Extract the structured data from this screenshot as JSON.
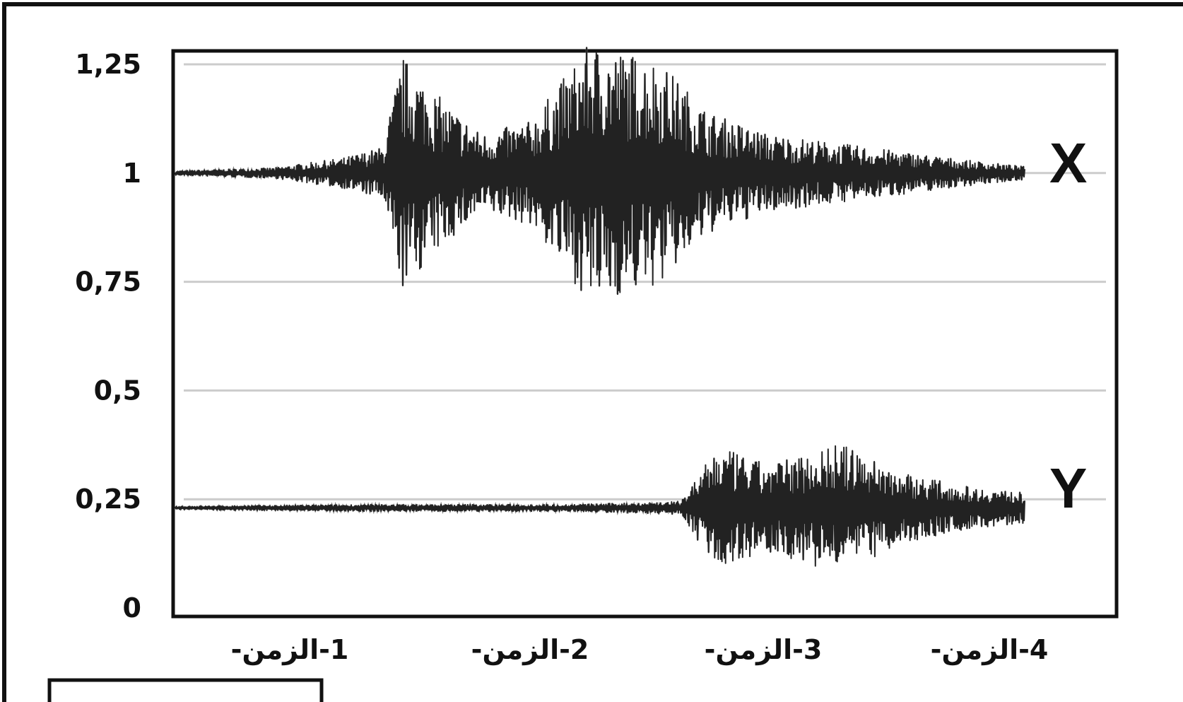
{
  "chart_data": {
    "type": "line",
    "title": "",
    "xlabel": "",
    "ylabel": "",
    "ylim": [
      0,
      1.25
    ],
    "grid": true,
    "y_ticks": [
      "0",
      "0,25",
      "0,5",
      "0,75",
      "1",
      "1,25"
    ],
    "y_tick_values": [
      0,
      0.25,
      0.5,
      0.75,
      1,
      1.25
    ],
    "x_ticks": [
      "1-الزمن-",
      "2-الزمن-",
      "3-الزمن-",
      "4-الزمن-"
    ],
    "series": [
      {
        "name": "X",
        "baseline": 1.0,
        "envelope": [
          {
            "t": 0.0,
            "amp": 0.005
          },
          {
            "t": 0.5,
            "amp": 0.012
          },
          {
            "t": 0.85,
            "amp": 0.035
          },
          {
            "t": 1.05,
            "amp": 0.06
          },
          {
            "t": 1.15,
            "amp": 0.27
          },
          {
            "t": 1.35,
            "amp": 0.17
          },
          {
            "t": 1.55,
            "amp": 0.09
          },
          {
            "t": 1.8,
            "amp": 0.12
          },
          {
            "t": 2.1,
            "amp": 0.3
          },
          {
            "t": 2.45,
            "amp": 0.26
          },
          {
            "t": 2.7,
            "amp": 0.14
          },
          {
            "t": 3.0,
            "amp": 0.09
          },
          {
            "t": 3.5,
            "amp": 0.06
          },
          {
            "t": 4.0,
            "amp": 0.03
          },
          {
            "t": 4.3,
            "amp": 0.015
          }
        ]
      },
      {
        "name": "Y",
        "baseline": 0.23,
        "envelope": [
          {
            "t": 0.0,
            "amp": 0.004
          },
          {
            "t": 1.0,
            "amp": 0.008
          },
          {
            "t": 2.0,
            "amp": 0.008
          },
          {
            "t": 2.55,
            "amp": 0.015
          },
          {
            "t": 2.75,
            "amp": 0.14
          },
          {
            "t": 3.0,
            "amp": 0.1
          },
          {
            "t": 3.35,
            "amp": 0.15
          },
          {
            "t": 3.7,
            "amp": 0.08
          },
          {
            "t": 4.0,
            "amp": 0.05
          },
          {
            "t": 4.3,
            "amp": 0.035
          }
        ]
      }
    ],
    "x_range": [
      0,
      4.3
    ],
    "colors": {
      "axis": "#111111",
      "grid": "#cccccc",
      "trace": "#222222",
      "trace_light": "#777777"
    }
  }
}
